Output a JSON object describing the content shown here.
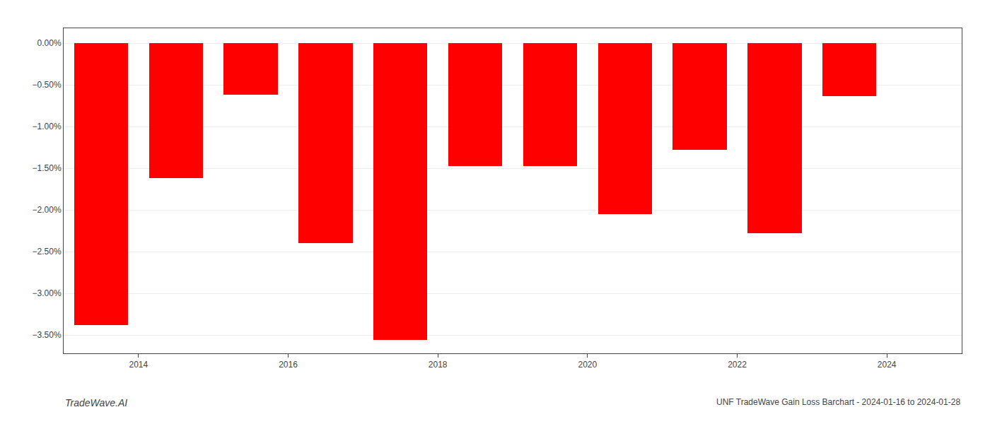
{
  "chart_data": {
    "type": "bar",
    "x": [
      2013.5,
      2014.5,
      2015.5,
      2016.5,
      2017.5,
      2018.5,
      2019.5,
      2020.5,
      2021.5,
      2022.5,
      2023.5
    ],
    "values": [
      -3.38,
      -1.62,
      -0.62,
      -2.4,
      -3.56,
      -1.47,
      -1.47,
      -2.05,
      -1.28,
      -2.28,
      -0.63
    ],
    "color": "#ff0000",
    "xlim": [
      2013,
      2025
    ],
    "xticks": [
      2014,
      2016,
      2018,
      2020,
      2022,
      2024
    ],
    "ylim": [
      -3.72,
      0.18
    ],
    "yticks": [
      {
        "value": 0.0,
        "label": "0.00%"
      },
      {
        "value": -0.5,
        "label": "−0.50%"
      },
      {
        "value": -1.0,
        "label": "−1.00%"
      },
      {
        "value": -1.5,
        "label": "−1.50%"
      },
      {
        "value": -2.0,
        "label": "−2.00%"
      },
      {
        "value": -2.5,
        "label": "−2.50%"
      },
      {
        "value": -3.0,
        "label": "−3.00%"
      },
      {
        "value": -3.5,
        "label": "−3.50%"
      }
    ],
    "grid": true,
    "annotations": [
      "TradeWave.AI",
      "UNF TradeWave Gain Loss Barchart - 2024-01-16 to 2024-01-28"
    ]
  }
}
